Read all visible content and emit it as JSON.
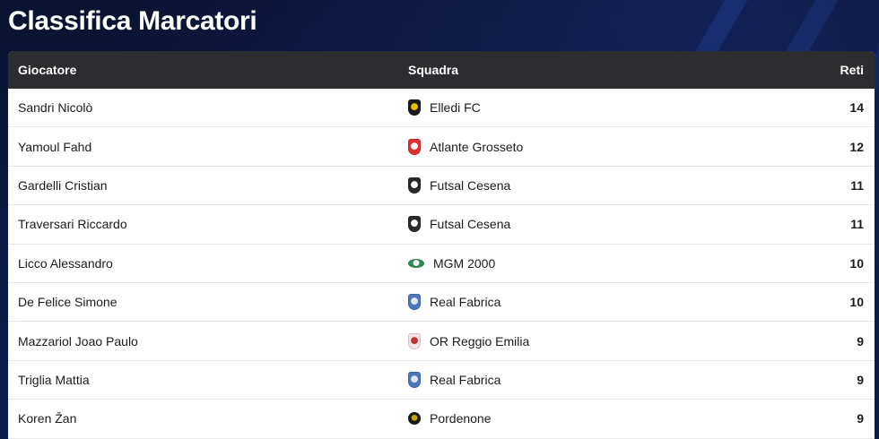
{
  "title": "Classifica Marcatori",
  "table": {
    "headers": {
      "player": "Giocatore",
      "team": "Squadra",
      "goals": "Reti"
    },
    "rows": [
      {
        "player": "Sandri Nicolò",
        "team": "Elledi FC",
        "goals": "14",
        "logo_icon": "elledi-fc-crest-icon",
        "logo_color": "#1a1a1a",
        "logo_accent": "#e8c000",
        "logo_shape": "shield"
      },
      {
        "player": "Yamoul Fahd",
        "team": "Atlante Grosseto",
        "goals": "12",
        "logo_icon": "atlante-grosseto-crest-icon",
        "logo_color": "#e03030",
        "logo_accent": "#ffffff",
        "logo_shape": "shield"
      },
      {
        "player": "Gardelli Cristian",
        "team": "Futsal Cesena",
        "goals": "11",
        "logo_icon": "futsal-cesena-crest-icon",
        "logo_color": "#2a2a2a",
        "logo_accent": "#ffffff",
        "logo_shape": "shield"
      },
      {
        "player": "Traversari Riccardo",
        "team": "Futsal Cesena",
        "goals": "11",
        "logo_icon": "futsal-cesena-crest-icon",
        "logo_color": "#2a2a2a",
        "logo_accent": "#ffffff",
        "logo_shape": "shield"
      },
      {
        "player": "Licco Alessandro",
        "team": "MGM 2000",
        "goals": "10",
        "logo_icon": "mgm-2000-crest-icon",
        "logo_color": "#2e8b57",
        "logo_accent": "#ffffff",
        "logo_shape": "oval"
      },
      {
        "player": "De Felice Simone",
        "team": "Real Fabrica",
        "goals": "10",
        "logo_icon": "real-fabrica-crest-icon",
        "logo_color": "#4a78b8",
        "logo_accent": "#dfe8f5",
        "logo_shape": "shield"
      },
      {
        "player": "Mazzariol Joao Paulo",
        "team": "OR Reggio Emilia",
        "goals": "9",
        "logo_icon": "or-reggio-emilia-crest-icon",
        "logo_color": "#f2e4e4",
        "logo_accent": "#c03030",
        "logo_shape": "shield"
      },
      {
        "player": "Triglia Mattia",
        "team": "Real Fabrica",
        "goals": "9",
        "logo_icon": "real-fabrica-crest-icon",
        "logo_color": "#4a78b8",
        "logo_accent": "#dfe8f5",
        "logo_shape": "shield"
      },
      {
        "player": "Koren Žan",
        "team": "Pordenone",
        "goals": "9",
        "logo_icon": "pordenone-crest-icon",
        "logo_color": "#1a1a1a",
        "logo_accent": "#c8a800",
        "logo_shape": "round"
      }
    ]
  }
}
